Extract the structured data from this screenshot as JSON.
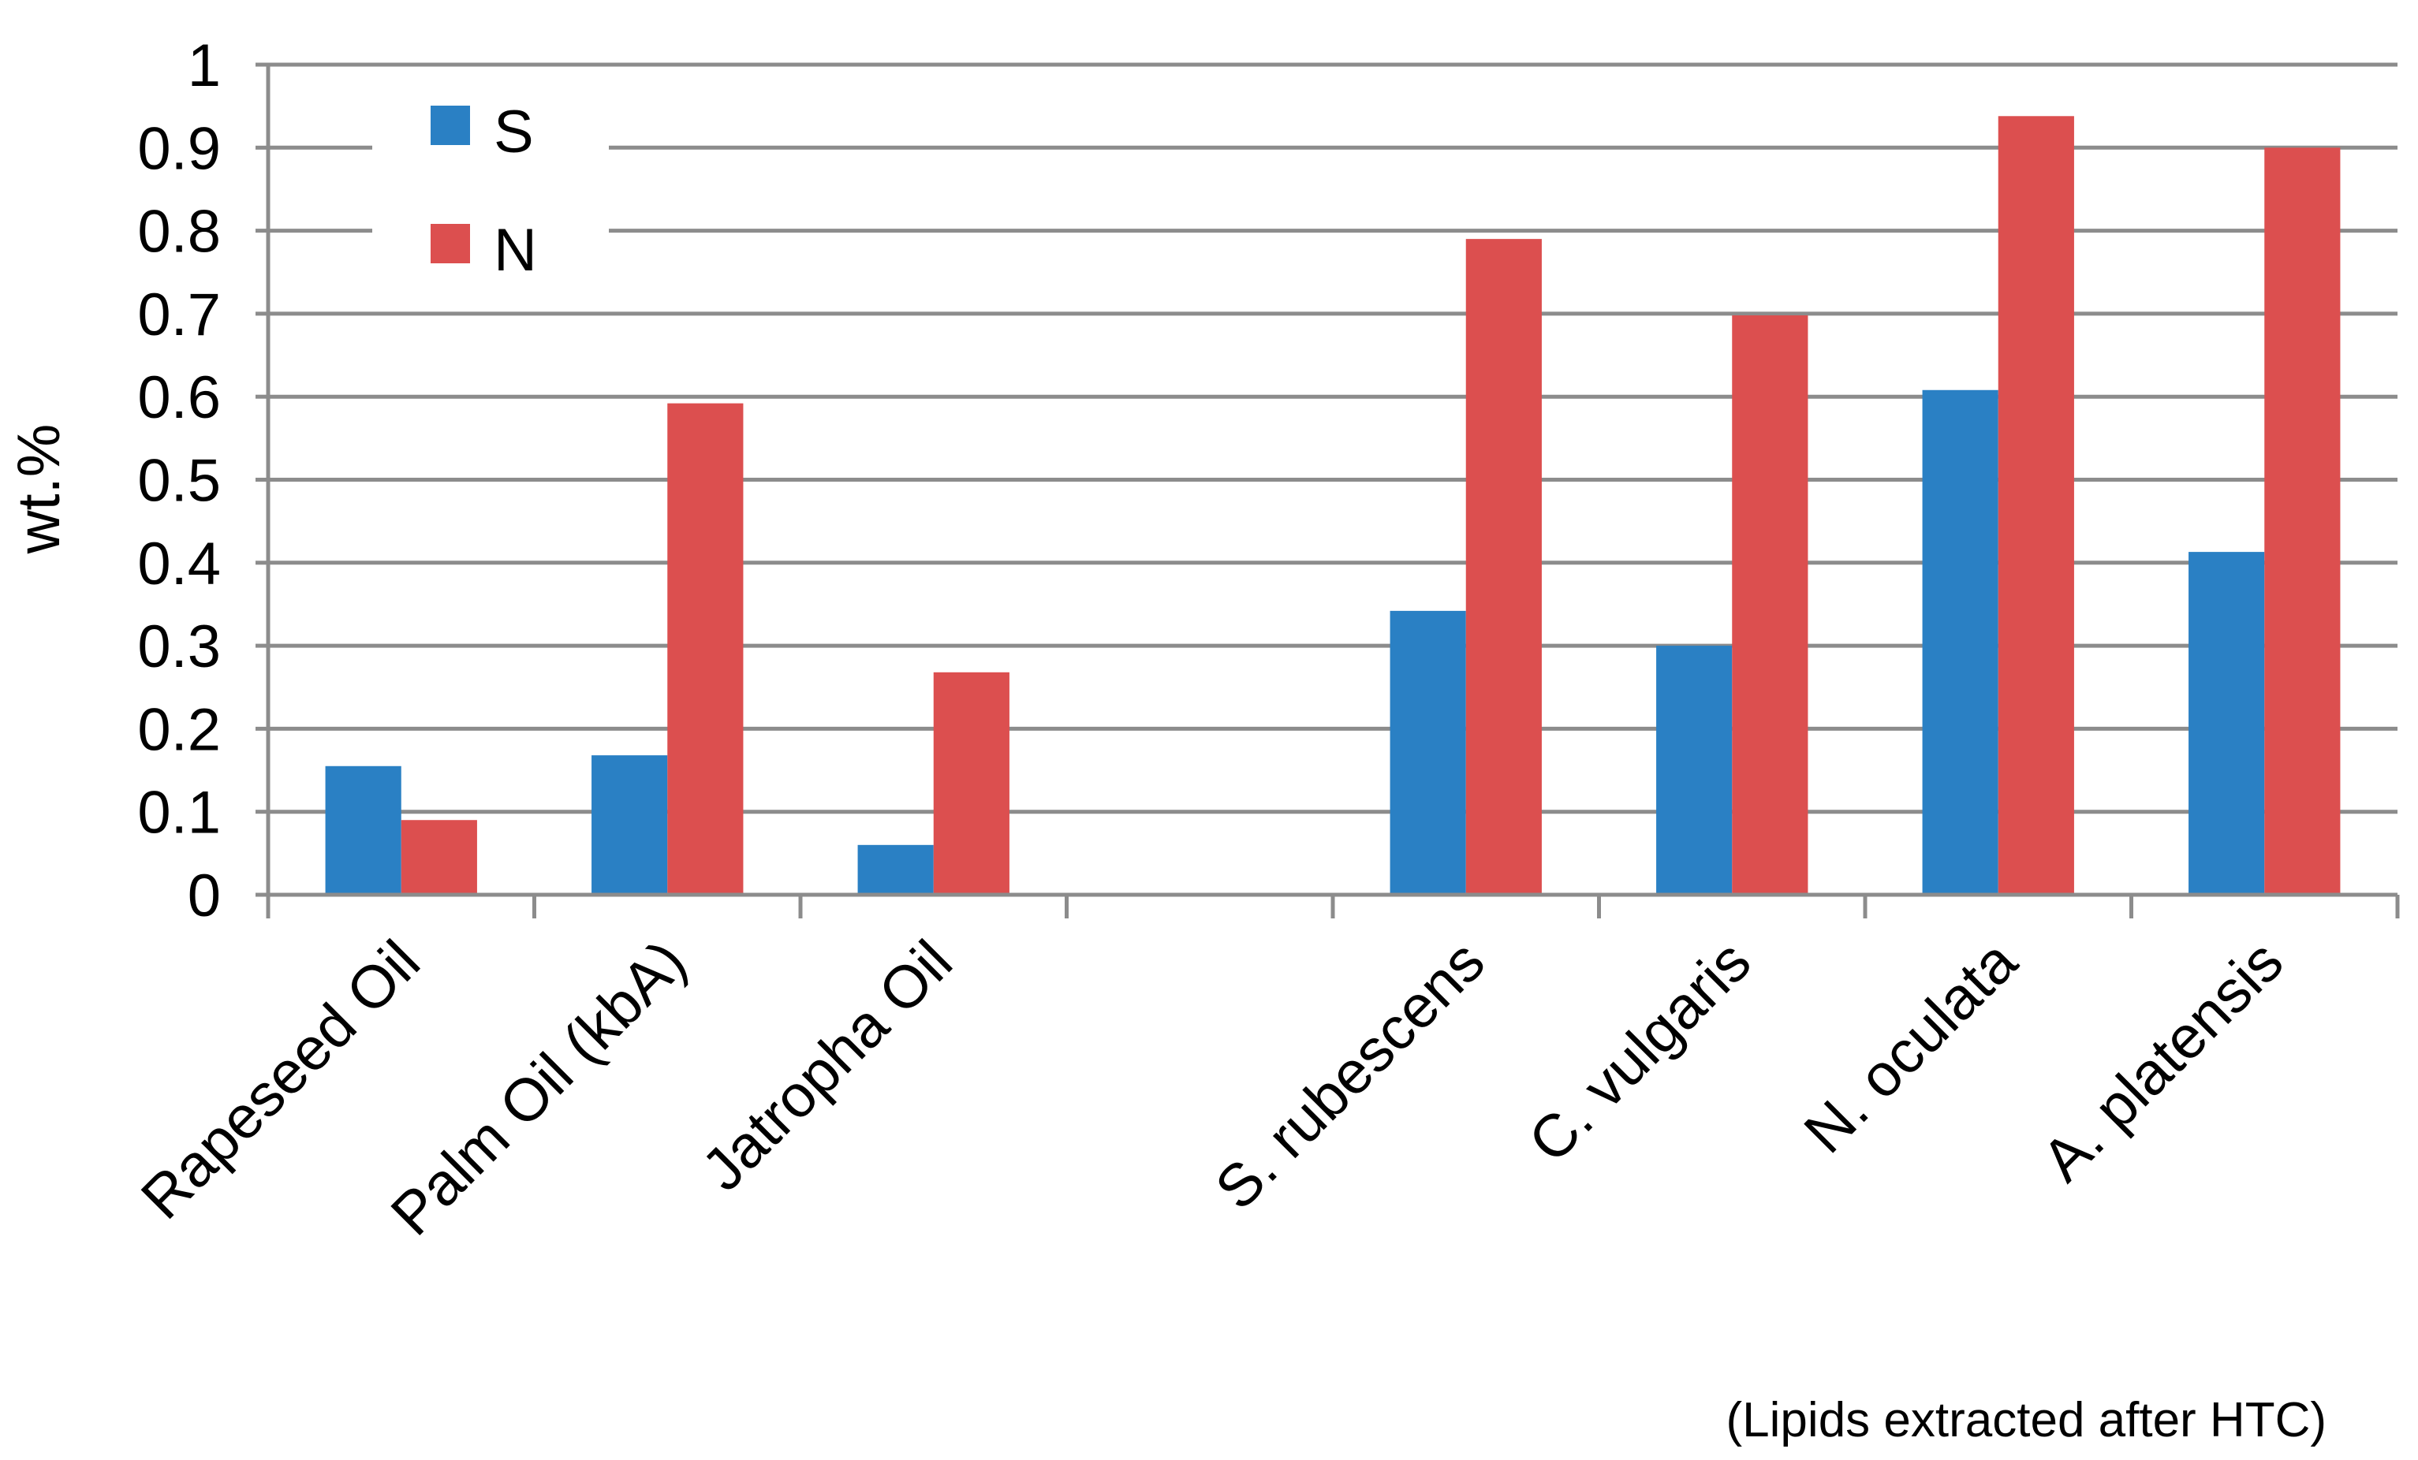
{
  "chart_data": {
    "type": "bar",
    "categories": [
      "Rapeseed Oil",
      "Palm Oil (kbA)",
      "Jatropha Oil",
      "",
      "S. rubescens",
      "C. vulgaris",
      "N. oculata",
      "A. platensis"
    ],
    "series": [
      {
        "name": "S",
        "color": "#2a80c4",
        "values": [
          0.155,
          0.168,
          0.06,
          null,
          0.342,
          0.3,
          0.608,
          0.413
        ]
      },
      {
        "name": "N",
        "color": "#dc4f4f",
        "values": [
          0.09,
          0.592,
          0.268,
          null,
          0.79,
          0.698,
          0.938,
          0.9
        ]
      }
    ],
    "ylabel": "wt.%",
    "ylim": [
      0,
      1
    ],
    "yticks": [
      "0",
      "0.1",
      "0.2",
      "0.3",
      "0.4",
      "0.5",
      "0.6",
      "0.7",
      "0.8",
      "0.9",
      "1"
    ],
    "grid": true,
    "legend_position": "top-left",
    "annotation": "(Lipids extracted after HTC)"
  }
}
